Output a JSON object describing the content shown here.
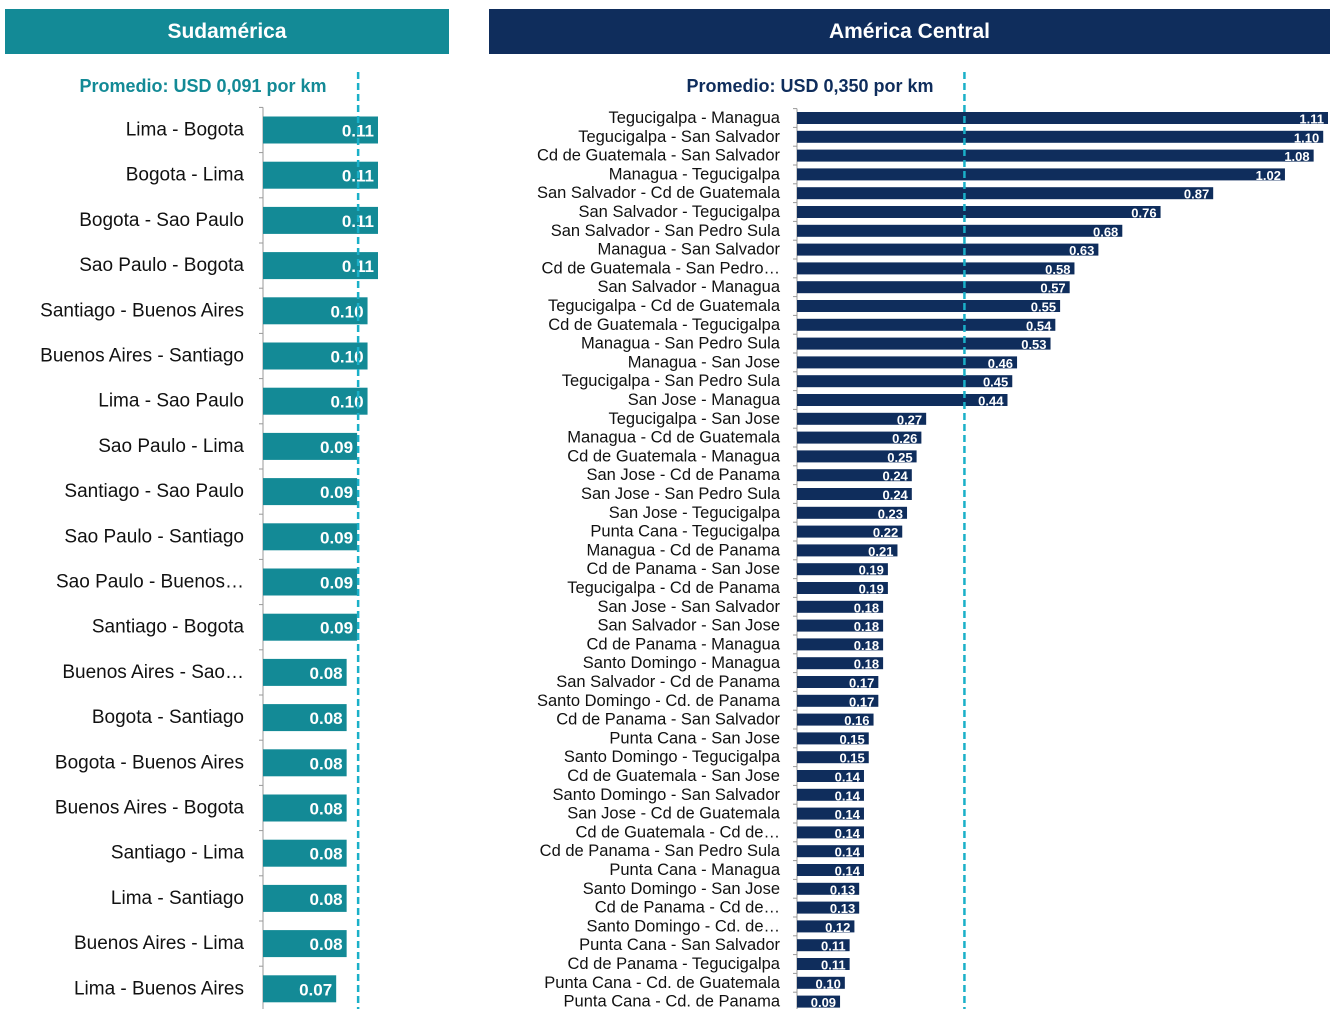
{
  "chart_data": [
    {
      "type": "bar",
      "orientation": "horizontal",
      "title": "Sudamérica",
      "color": "#138a96",
      "reference_line": {
        "value": 0.091,
        "label": "Promedio: USD 0,091 por km"
      },
      "categories": [
        "Lima - Bogota",
        "Bogota - Lima",
        "Bogota - Sao Paulo",
        "Sao Paulo - Bogota",
        "Santiago - Buenos Aires",
        "Buenos Aires - Santiago",
        "Lima - Sao Paulo",
        "Sao Paulo - Lima",
        "Santiago - Sao Paulo",
        "Sao Paulo - Santiago",
        "Sao Paulo - Buenos…",
        "Santiago - Bogota",
        "Buenos Aires - Sao…",
        "Bogota - Santiago",
        "Bogota - Buenos Aires",
        "Buenos Aires - Bogota",
        "Santiago - Lima",
        "Lima - Santiago",
        "Buenos Aires - Lima",
        "Lima - Buenos Aires"
      ],
      "values": [
        0.11,
        0.11,
        0.11,
        0.11,
        0.1,
        0.1,
        0.1,
        0.09,
        0.09,
        0.09,
        0.09,
        0.09,
        0.08,
        0.08,
        0.08,
        0.08,
        0.08,
        0.08,
        0.08,
        0.07
      ],
      "value_labels": [
        "0.11",
        "0.11",
        "0.11",
        "0.11",
        "0.10",
        "0.10",
        "0.10",
        "0.09",
        "0.09",
        "0.09",
        "0.09",
        "0.09",
        "0.08",
        "0.08",
        "0.08",
        "0.08",
        "0.08",
        "0.08",
        "0.08",
        "0.07"
      ]
    },
    {
      "type": "bar",
      "orientation": "horizontal",
      "title": "América Central",
      "color": "#0f2d5c",
      "reference_line": {
        "value": 0.35,
        "label": "Promedio: USD 0,350 por km"
      },
      "categories": [
        "Tegucigalpa - Managua",
        "Tegucigalpa - San Salvador",
        "Cd de Guatemala - San Salvador",
        "Managua - Tegucigalpa",
        "San Salvador - Cd de Guatemala",
        "San Salvador - Tegucigalpa",
        "San Salvador - San Pedro Sula",
        "Managua - San Salvador",
        "Cd de Guatemala - San Pedro…",
        "San Salvador - Managua",
        "Tegucigalpa - Cd de Guatemala",
        "Cd de Guatemala - Tegucigalpa",
        "Managua - San Pedro Sula",
        "Managua - San Jose",
        "Tegucigalpa - San Pedro Sula",
        "San Jose - Managua",
        "Tegucigalpa - San Jose",
        "Managua - Cd de Guatemala",
        "Cd de Guatemala - Managua",
        "San Jose - Cd de Panama",
        "San Jose - San Pedro Sula",
        "San Jose - Tegucigalpa",
        "Punta Cana - Tegucigalpa",
        "Managua - Cd de Panama",
        "Cd de Panama - San Jose",
        "Tegucigalpa - Cd de Panama",
        "San Jose - San Salvador",
        "San Salvador - San Jose",
        "Cd de Panama - Managua",
        "Santo Domingo - Managua",
        "San Salvador - Cd de Panama",
        "Santo Domingo - Cd. de Panama",
        "Cd de Panama - San Salvador",
        "Punta Cana - San Jose",
        "Santo Domingo - Tegucigalpa",
        "Cd de Guatemala - San Jose",
        "Santo Domingo - San Salvador",
        "San Jose - Cd de Guatemala",
        "Cd de Guatemala - Cd de…",
        "Cd de Panama - San Pedro Sula",
        "Punta Cana - Managua",
        "Santo Domingo - San Jose",
        "Cd de Panama - Cd de…",
        "Santo Domingo - Cd. de…",
        "Punta Cana - San Salvador",
        "Cd de Panama - Tegucigalpa",
        "Punta Cana - Cd. de Guatemala",
        "Punta Cana - Cd. de Panama"
      ],
      "values": [
        1.11,
        1.1,
        1.08,
        1.02,
        0.87,
        0.76,
        0.68,
        0.63,
        0.58,
        0.57,
        0.55,
        0.54,
        0.53,
        0.46,
        0.45,
        0.44,
        0.27,
        0.26,
        0.25,
        0.24,
        0.24,
        0.23,
        0.22,
        0.21,
        0.19,
        0.19,
        0.18,
        0.18,
        0.18,
        0.18,
        0.17,
        0.17,
        0.16,
        0.15,
        0.15,
        0.14,
        0.14,
        0.14,
        0.14,
        0.14,
        0.14,
        0.13,
        0.13,
        0.12,
        0.11,
        0.11,
        0.1,
        0.09
      ],
      "value_labels": [
        "1.11",
        "1.10",
        "1.08",
        "1.02",
        "0.87",
        "0.76",
        "0.68",
        "0.63",
        "0.58",
        "0.57",
        "0.55",
        "0.54",
        "0.53",
        "0.46",
        "0.45",
        "0.44",
        "0.27",
        "0.26",
        "0.25",
        "0.24",
        "0.24",
        "0.23",
        "0.22",
        "0.21",
        "0.19",
        "0.19",
        "0.18",
        "0.18",
        "0.18",
        "0.18",
        "0.17",
        "0.17",
        "0.16",
        "0.15",
        "0.15",
        "0.14",
        "0.14",
        "0.14",
        "0.14",
        "0.14",
        "0.14",
        "0.13",
        "0.13",
        "0.12",
        "0.11",
        "0.11",
        "0.10",
        "0.09"
      ]
    }
  ]
}
